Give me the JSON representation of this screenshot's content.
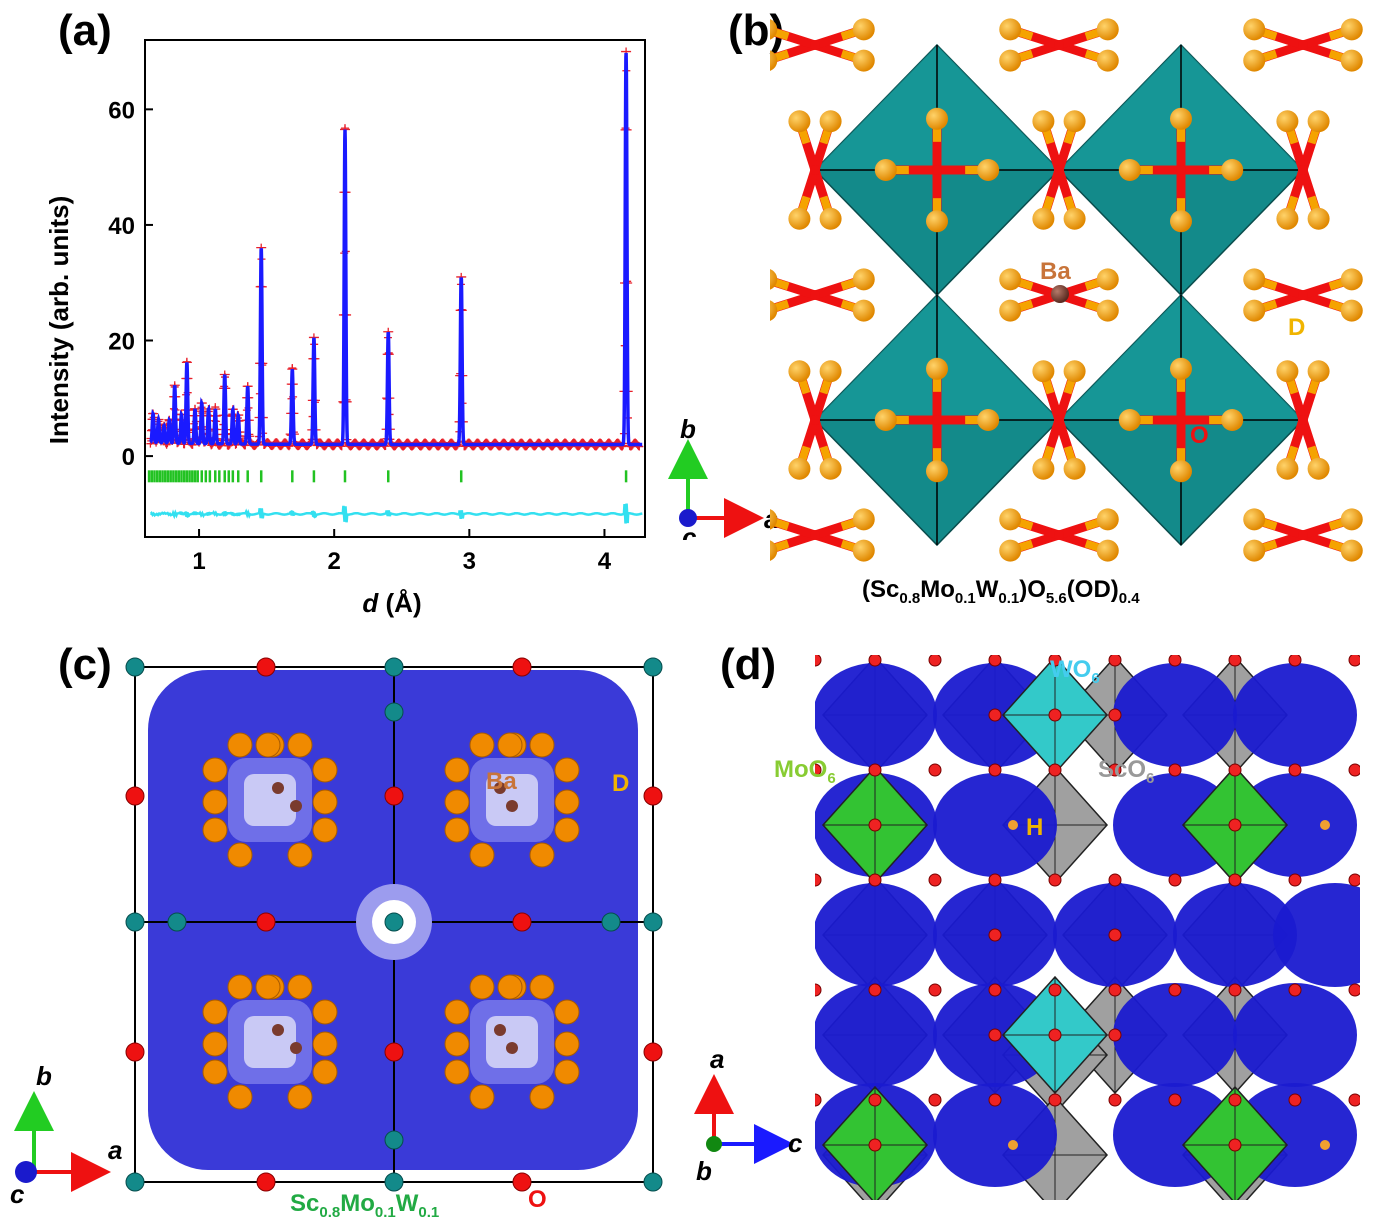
{
  "panels": {
    "a": {
      "label": "(a)"
    },
    "b": {
      "label": "(b)",
      "ba": "Ba",
      "d": "D",
      "o": "O",
      "formula_parts": [
        "(Sc",
        "0.8",
        "Mo",
        "0.1",
        "W",
        "0.1",
        ")O",
        "5.6",
        "(OD)",
        "0.4"
      ]
    },
    "c": {
      "label": "(c)",
      "ba": "Ba",
      "d": "D",
      "o": "O",
      "formula_parts": [
        "Sc",
        "0.8",
        "Mo",
        "0.1",
        "W",
        "0.1"
      ]
    },
    "d": {
      "label": "(d)",
      "wo6": [
        "WO",
        "6"
      ],
      "moo6": [
        "MoO",
        "6"
      ],
      "sco6": [
        "ScO",
        "6"
      ],
      "h": "H"
    }
  },
  "axes_triads": {
    "b": {
      "up": "b",
      "right": "a",
      "out": "c"
    },
    "c": {
      "up": "b",
      "right": "a",
      "out": "c"
    },
    "d": {
      "up": "a",
      "right": "c",
      "out": "b"
    }
  },
  "colors": {
    "observed": "#e8212b",
    "calculated": "#1a1aff",
    "bragg": "#22c222",
    "difference": "#33e0f0",
    "octahedron": "#138a8a",
    "d_atom": "#f5a300",
    "o_atom": "#ee1111",
    "ba_atom": "#7a3b2e",
    "isosurface": "#3a3ad8",
    "moo6": "#33c333",
    "wo6": "#33c9c9",
    "sco6": "#a0a0a0"
  },
  "chart_data": {
    "type": "line",
    "title": "",
    "xlabel": "d (Å)",
    "ylabel": "Intensity (arb. units)",
    "xlim": [
      0.6,
      4.3
    ],
    "ylim": [
      -14,
      72
    ],
    "xticks": [
      1,
      2,
      3,
      4
    ],
    "yticks": [
      0,
      20,
      40,
      60
    ],
    "background": 2,
    "peaks": [
      {
        "d": 0.66,
        "h": 5
      },
      {
        "d": 0.7,
        "h": 4
      },
      {
        "d": 0.74,
        "h": 3
      },
      {
        "d": 0.78,
        "h": 4
      },
      {
        "d": 0.82,
        "h": 10
      },
      {
        "d": 0.87,
        "h": 5
      },
      {
        "d": 0.91,
        "h": 14
      },
      {
        "d": 0.97,
        "h": 6
      },
      {
        "d": 1.02,
        "h": 7
      },
      {
        "d": 1.07,
        "h": 6
      },
      {
        "d": 1.12,
        "h": 6
      },
      {
        "d": 1.19,
        "h": 12
      },
      {
        "d": 1.25,
        "h": 6
      },
      {
        "d": 1.29,
        "h": 5
      },
      {
        "d": 1.36,
        "h": 10
      },
      {
        "d": 1.46,
        "h": 34
      },
      {
        "d": 1.69,
        "h": 13
      },
      {
        "d": 1.85,
        "h": 18.5
      },
      {
        "d": 2.08,
        "h": 54.5
      },
      {
        "d": 2.4,
        "h": 19.5
      },
      {
        "d": 2.94,
        "h": 29
      },
      {
        "d": 4.16,
        "h": 68
      }
    ],
    "bragg_positions": [
      0.63,
      0.65,
      0.67,
      0.69,
      0.71,
      0.73,
      0.75,
      0.77,
      0.79,
      0.81,
      0.83,
      0.85,
      0.87,
      0.89,
      0.91,
      0.93,
      0.95,
      0.97,
      0.99,
      1.02,
      1.05,
      1.08,
      1.12,
      1.15,
      1.19,
      1.22,
      1.25,
      1.29,
      1.36,
      1.46,
      1.69,
      1.85,
      2.08,
      2.4,
      2.94,
      4.16
    ],
    "bragg_y": -3.5,
    "difference_offset": -10
  }
}
